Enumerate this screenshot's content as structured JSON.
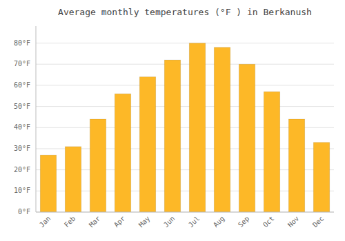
{
  "chart_data": {
    "type": "bar",
    "title": "Average monthly temperatures (°F ) in Berkanush",
    "categories": [
      "Jan",
      "Feb",
      "Mar",
      "Apr",
      "May",
      "Jun",
      "Jul",
      "Aug",
      "Sep",
      "Oct",
      "Nov",
      "Dec"
    ],
    "values": [
      27,
      31,
      44,
      56,
      64,
      72,
      80,
      78,
      70,
      57,
      44,
      33
    ],
    "color": "#FDB827",
    "ylim": [
      0,
      88
    ],
    "yticks": [
      {
        "value": 0,
        "label": "0°F"
      },
      {
        "value": 10,
        "label": "10°F"
      },
      {
        "value": 20,
        "label": "20°F"
      },
      {
        "value": 30,
        "label": "30°F"
      },
      {
        "value": 40,
        "label": "40°F"
      },
      {
        "value": 50,
        "label": "50°F"
      },
      {
        "value": 60,
        "label": "60°F"
      },
      {
        "value": 70,
        "label": "70°F"
      },
      {
        "value": 80,
        "label": "80°F"
      }
    ],
    "grid": true
  }
}
